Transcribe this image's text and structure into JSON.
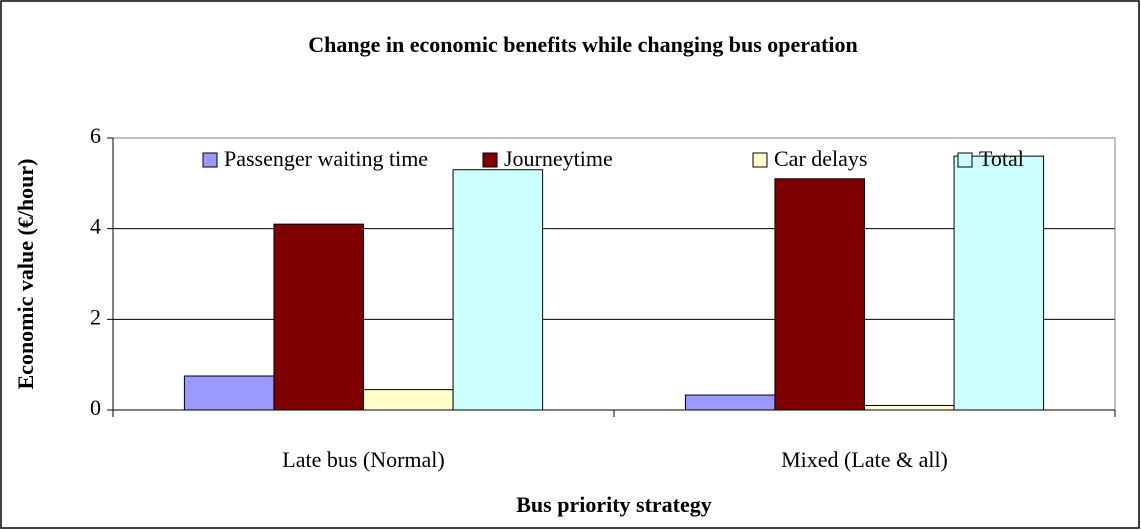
{
  "chart_data": {
    "type": "bar",
    "title": "Change in economic benefits while changing bus operation",
    "x_label": "Bus priority strategy",
    "y_label": "Economic value (€/hour)",
    "categories": [
      "Late bus (Normal)",
      "Mixed (Late & all)"
    ],
    "series": [
      {
        "name": "Passenger waiting time",
        "color": "#9999ff",
        "values": [
          0.75,
          0.33
        ]
      },
      {
        "name": "Journeytime",
        "color": "#800000",
        "values": [
          4.1,
          5.1
        ]
      },
      {
        "name": "Car delays",
        "color": "#ffffcc",
        "values": [
          0.45,
          0.1
        ]
      },
      {
        "name": "Total",
        "color": "#ccffff",
        "values": [
          5.3,
          5.6
        ]
      }
    ],
    "ylim": [
      0,
      6
    ],
    "yticks": [
      0,
      2,
      4,
      6
    ],
    "grid": true,
    "legend": "top"
  }
}
